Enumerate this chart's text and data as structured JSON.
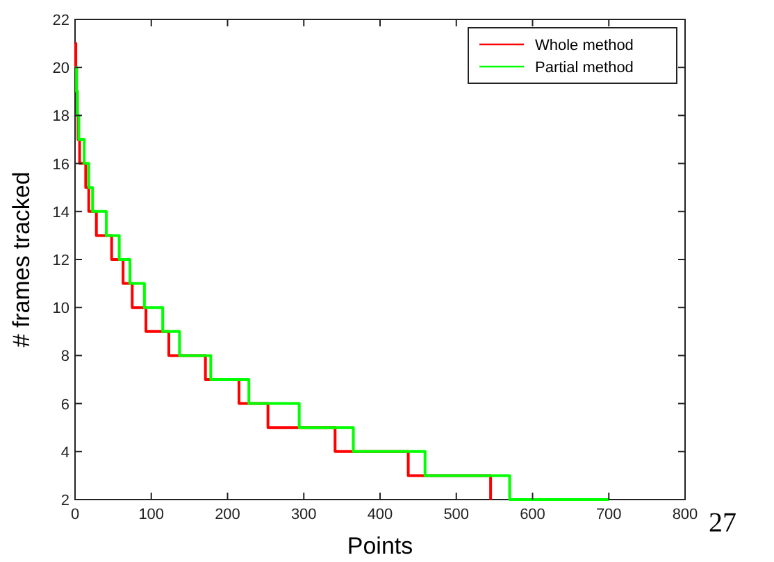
{
  "chart_data": {
    "type": "step",
    "xlabel": "Points",
    "ylabel": "# frames tracked",
    "xlim": [
      0,
      800
    ],
    "xticks": [
      0,
      100,
      200,
      300,
      400,
      500,
      600,
      700,
      800
    ],
    "ylim": [
      2,
      22
    ],
    "yticks": [
      2,
      4,
      6,
      8,
      10,
      12,
      14,
      16,
      18,
      20,
      22
    ],
    "legend": "top right",
    "grid": false,
    "annotations": [
      "27"
    ],
    "series": [
      {
        "name": "Whole method",
        "color": "#ff0000",
        "x": [
          0,
          1,
          2,
          3,
          4,
          6,
          14,
          18,
          28,
          48,
          63,
          75,
          93,
          123,
          171,
          215,
          253,
          341,
          437,
          545
        ],
        "values": [
          21,
          20,
          19,
          18,
          17,
          16,
          15,
          14,
          13,
          12,
          11,
          10,
          9,
          8,
          7,
          6,
          5,
          4,
          3,
          2
        ]
      },
      {
        "name": "Partial method",
        "color": "#00ff00",
        "x": [
          0,
          2,
          3,
          5,
          12,
          18,
          23,
          41,
          58,
          72,
          91,
          115,
          137,
          178,
          228,
          294,
          365,
          459,
          570,
          700
        ],
        "values": [
          20,
          19,
          18,
          17,
          16,
          15,
          14,
          13,
          12,
          11,
          10,
          9,
          8,
          7,
          6,
          5,
          4,
          3,
          2,
          2
        ]
      }
    ]
  }
}
